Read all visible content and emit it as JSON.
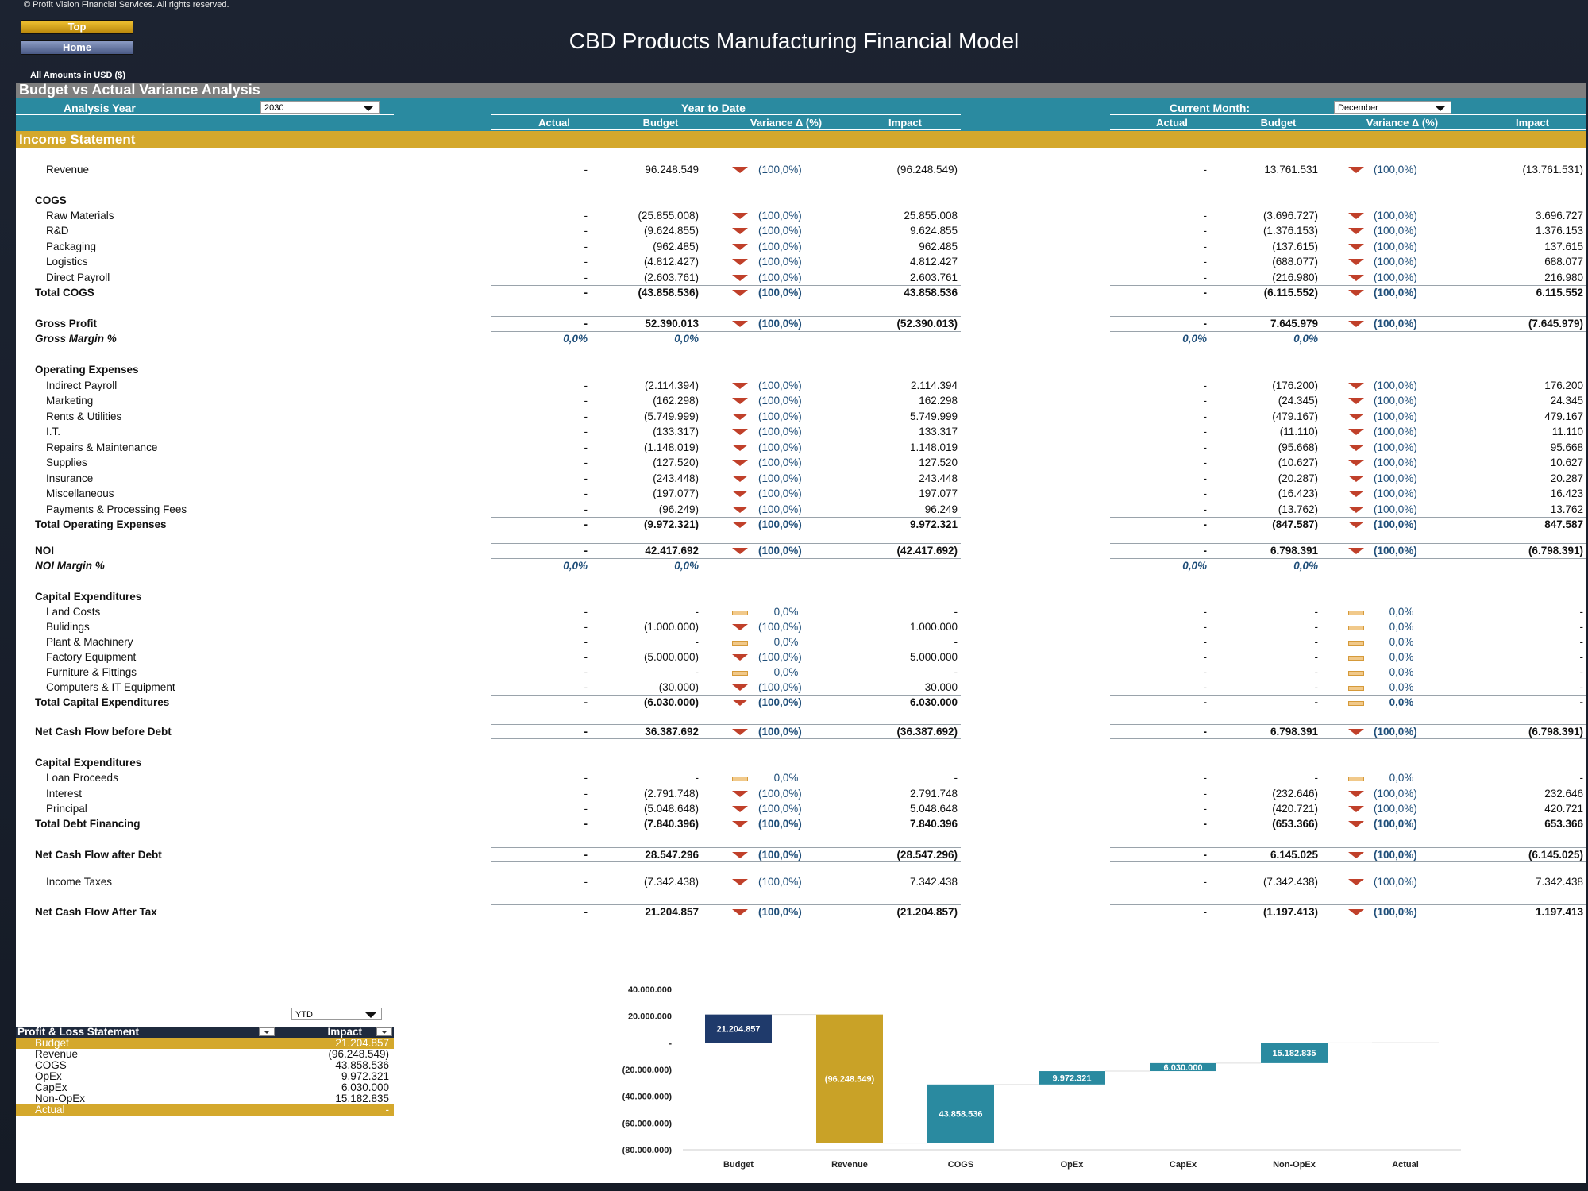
{
  "copyright": "© Profit Vision Financial Services. All rights reserved.",
  "nav": {
    "top": "Top",
    "home": "Home"
  },
  "title": "CBD Products Manufacturing Financial Model",
  "amounts_note": "All Amounts in  USD ($)",
  "section_title": "Budget vs Actual Variance Analysis",
  "controls": {
    "analysis_year_label": "Analysis Year",
    "analysis_year_value": "2030",
    "ytd_label": "Year to Date",
    "current_month_label": "Current Month:",
    "current_month_value": "December"
  },
  "columns": {
    "actual": "Actual",
    "budget": "Budget",
    "variance": "Variance Δ  (%)",
    "impact": "Impact"
  },
  "income_statement_title": "Income Statement",
  "rows": [
    {
      "label": "Revenue",
      "style": "indent",
      "y": 0,
      "ya": "-",
      "yb": "96.248.549",
      "yv": "(100,0%)",
      "yi": "(96.248.549)",
      "ma": "-",
      "mb": "13.761.531",
      "mv": "(100,0%)",
      "mi": "(13.761.531)",
      "icon": "down"
    },
    {
      "label": "COGS",
      "style": "header",
      "y": 39
    },
    {
      "label": "Raw Materials",
      "style": "indent",
      "y": 58,
      "ya": "-",
      "yb": "(25.855.008)",
      "yv": "(100,0%)",
      "yi": "25.855.008",
      "ma": "-",
      "mb": "(3.696.727)",
      "mv": "(100,0%)",
      "mi": "3.696.727",
      "icon": "down"
    },
    {
      "label": "R&D",
      "style": "indent",
      "y": 77,
      "ya": "-",
      "yb": "(9.624.855)",
      "yv": "(100,0%)",
      "yi": "9.624.855",
      "ma": "-",
      "mb": "(1.376.153)",
      "mv": "(100,0%)",
      "mi": "1.376.153",
      "icon": "down"
    },
    {
      "label": "Packaging",
      "style": "indent",
      "y": 97,
      "ya": "-",
      "yb": "(962.485)",
      "yv": "(100,0%)",
      "yi": "962.485",
      "ma": "-",
      "mb": "(137.615)",
      "mv": "(100,0%)",
      "mi": "137.615",
      "icon": "down"
    },
    {
      "label": "Logistics",
      "style": "indent",
      "y": 116,
      "ya": "-",
      "yb": "(4.812.427)",
      "yv": "(100,0%)",
      "yi": "4.812.427",
      "ma": "-",
      "mb": "(688.077)",
      "mv": "(100,0%)",
      "mi": "688.077",
      "icon": "down"
    },
    {
      "label": "Direct Payroll",
      "style": "indent",
      "y": 136,
      "ya": "-",
      "yb": "(2.603.761)",
      "yv": "(100,0%)",
      "yi": "2.603.761",
      "ma": "-",
      "mb": "(216.980)",
      "mv": "(100,0%)",
      "mi": "216.980",
      "icon": "down"
    },
    {
      "label": "Total COGS",
      "style": "total",
      "y": 155,
      "ya": "-",
      "yb": "(43.858.536)",
      "yv": "(100,0%)",
      "yi": "43.858.536",
      "ma": "-",
      "mb": "(6.115.552)",
      "mv": "(100,0%)",
      "mi": "6.115.552",
      "icon": "down",
      "line_above": true
    },
    {
      "label": "Gross Profit",
      "style": "total",
      "y": 194,
      "ya": "-",
      "yb": "52.390.013",
      "yv": "(100,0%)",
      "yi": "(52.390.013)",
      "ma": "-",
      "mb": "7.645.979",
      "mv": "(100,0%)",
      "mi": "(7.645.979)",
      "icon": "down",
      "line_above": true
    },
    {
      "label": "Gross Margin %",
      "style": "pct",
      "y": 213,
      "ya": "0,0%",
      "yb": "0,0%",
      "ma": "0,0%",
      "mb": "0,0%",
      "line_above": true
    },
    {
      "label": "Operating Expenses",
      "style": "header",
      "y": 252
    },
    {
      "label": "Indirect Payroll",
      "style": "indent",
      "y": 272,
      "ya": "-",
      "yb": "(2.114.394)",
      "yv": "(100,0%)",
      "yi": "2.114.394",
      "ma": "-",
      "mb": "(176.200)",
      "mv": "(100,0%)",
      "mi": "176.200",
      "icon": "down"
    },
    {
      "label": "Marketing",
      "style": "indent",
      "y": 291,
      "ya": "-",
      "yb": "(162.298)",
      "yv": "(100,0%)",
      "yi": "162.298",
      "ma": "-",
      "mb": "(24.345)",
      "mv": "(100,0%)",
      "mi": "24.345",
      "icon": "down"
    },
    {
      "label": "Rents & Utilities",
      "style": "indent",
      "y": 311,
      "ya": "-",
      "yb": "(5.749.999)",
      "yv": "(100,0%)",
      "yi": "5.749.999",
      "ma": "-",
      "mb": "(479.167)",
      "mv": "(100,0%)",
      "mi": "479.167",
      "icon": "down"
    },
    {
      "label": "I.T.",
      "style": "indent",
      "y": 330,
      "ya": "-",
      "yb": "(133.317)",
      "yv": "(100,0%)",
      "yi": "133.317",
      "ma": "-",
      "mb": "(11.110)",
      "mv": "(100,0%)",
      "mi": "11.110",
      "icon": "down"
    },
    {
      "label": "Repairs & Maintenance",
      "style": "indent",
      "y": 350,
      "ya": "-",
      "yb": "(1.148.019)",
      "yv": "(100,0%)",
      "yi": "1.148.019",
      "ma": "-",
      "mb": "(95.668)",
      "mv": "(100,0%)",
      "mi": "95.668",
      "icon": "down"
    },
    {
      "label": "Supplies",
      "style": "indent",
      "y": 369,
      "ya": "-",
      "yb": "(127.520)",
      "yv": "(100,0%)",
      "yi": "127.520",
      "ma": "-",
      "mb": "(10.627)",
      "mv": "(100,0%)",
      "mi": "10.627",
      "icon": "down"
    },
    {
      "label": "Insurance",
      "style": "indent",
      "y": 389,
      "ya": "-",
      "yb": "(243.448)",
      "yv": "(100,0%)",
      "yi": "243.448",
      "ma": "-",
      "mb": "(20.287)",
      "mv": "(100,0%)",
      "mi": "20.287",
      "icon": "down"
    },
    {
      "label": "Miscellaneous",
      "style": "indent",
      "y": 408,
      "ya": "-",
      "yb": "(197.077)",
      "yv": "(100,0%)",
      "yi": "197.077",
      "ma": "-",
      "mb": "(16.423)",
      "mv": "(100,0%)",
      "mi": "16.423",
      "icon": "down"
    },
    {
      "label": "Payments & Processing Fees",
      "style": "indent",
      "y": 428,
      "ya": "-",
      "yb": "(96.249)",
      "yv": "(100,0%)",
      "yi": "96.249",
      "ma": "-",
      "mb": "(13.762)",
      "mv": "(100,0%)",
      "mi": "13.762",
      "icon": "down"
    },
    {
      "label": "Total Operating Expenses",
      "style": "total",
      "y": 447,
      "ya": "-",
      "yb": "(9.972.321)",
      "yv": "(100,0%)",
      "yi": "9.972.321",
      "ma": "-",
      "mb": "(847.587)",
      "mv": "(100,0%)",
      "mi": "847.587",
      "icon": "down",
      "line_above": true
    },
    {
      "label": "NOI",
      "style": "total",
      "y": 480,
      "ya": "-",
      "yb": "42.417.692",
      "yv": "(100,0%)",
      "yi": "(42.417.692)",
      "ma": "-",
      "mb": "6.798.391",
      "mv": "(100,0%)",
      "mi": "(6.798.391)",
      "icon": "down",
      "line_above": true
    },
    {
      "label": "NOI Margin %",
      "style": "pct",
      "y": 499,
      "ya": "0,0%",
      "yb": "0,0%",
      "ma": "0,0%",
      "mb": "0,0%",
      "line_above": true
    },
    {
      "label": "Capital Expenditures",
      "style": "header",
      "y": 538
    },
    {
      "label": "Land Costs",
      "style": "indent",
      "y": 557,
      "ya": "-",
      "yb": "-",
      "yv": "0,0%",
      "yi": "-",
      "ma": "-",
      "mb": "-",
      "mv": "0,0%",
      "mi": "-",
      "icon": "flat"
    },
    {
      "label": "Bulidings",
      "style": "indent",
      "y": 576,
      "ya": "-",
      "yb": "(1.000.000)",
      "yv": "(100,0%)",
      "yi": "1.000.000",
      "ma": "-",
      "mb": "-",
      "mv": "0,0%",
      "mi": "-",
      "icon": "down",
      "micon": "flat"
    },
    {
      "label": "Plant & Machinery",
      "style": "indent",
      "y": 595,
      "ya": "-",
      "yb": "-",
      "yv": "0,0%",
      "yi": "-",
      "ma": "-",
      "mb": "-",
      "mv": "0,0%",
      "mi": "-",
      "icon": "flat"
    },
    {
      "label": "Factory Equipment",
      "style": "indent",
      "y": 614,
      "ya": "-",
      "yb": "(5.000.000)",
      "yv": "(100,0%)",
      "yi": "5.000.000",
      "ma": "-",
      "mb": "-",
      "mv": "0,0%",
      "mi": "-",
      "icon": "down",
      "micon": "flat"
    },
    {
      "label": "Furniture & Fittings",
      "style": "indent",
      "y": 633,
      "ya": "-",
      "yb": "-",
      "yv": "0,0%",
      "yi": "-",
      "ma": "-",
      "mb": "-",
      "mv": "0,0%",
      "mi": "-",
      "icon": "flat"
    },
    {
      "label": "Computers & IT Equipment",
      "style": "indent",
      "y": 652,
      "ya": "-",
      "yb": "(30.000)",
      "yv": "(100,0%)",
      "yi": "30.000",
      "ma": "-",
      "mb": "-",
      "mv": "0,0%",
      "mi": "-",
      "icon": "down",
      "micon": "flat"
    },
    {
      "label": "Total Capital Expenditures",
      "style": "total",
      "y": 671,
      "ya": "-",
      "yb": "(6.030.000)",
      "yv": "(100,0%)",
      "yi": "6.030.000",
      "ma": "-",
      "mb": "-",
      "mv": "0,0%",
      "mi": "-",
      "icon": "down",
      "micon": "flat",
      "line_above": true
    },
    {
      "label": "Net Cash Flow before Debt",
      "style": "total",
      "y": 708,
      "ya": "-",
      "yb": "36.387.692",
      "yv": "(100,0%)",
      "yi": "(36.387.692)",
      "ma": "-",
      "mb": "6.798.391",
      "mv": "(100,0%)",
      "mi": "(6.798.391)",
      "icon": "down",
      "line_above": true,
      "line_below": true
    },
    {
      "label": "Capital Expenditures",
      "style": "header",
      "y": 747
    },
    {
      "label": "Loan Proceeds",
      "style": "indent",
      "y": 766,
      "ya": "-",
      "yb": "-",
      "yv": "0,0%",
      "yi": "-",
      "ma": "-",
      "mb": "-",
      "mv": "0,0%",
      "mi": "-",
      "icon": "flat"
    },
    {
      "label": "Interest",
      "style": "indent",
      "y": 786,
      "ya": "-",
      "yb": "(2.791.748)",
      "yv": "(100,0%)",
      "yi": "2.791.748",
      "ma": "-",
      "mb": "(232.646)",
      "mv": "(100,0%)",
      "mi": "232.646",
      "icon": "down"
    },
    {
      "label": "Principal",
      "style": "indent",
      "y": 805,
      "ya": "-",
      "yb": "(5.048.648)",
      "yv": "(100,0%)",
      "yi": "5.048.648",
      "ma": "-",
      "mb": "(420.721)",
      "mv": "(100,0%)",
      "mi": "420.721",
      "icon": "down"
    },
    {
      "label": "Total Debt Financing",
      "style": "total",
      "y": 824,
      "ya": "-",
      "yb": "(7.840.396)",
      "yv": "(100,0%)",
      "yi": "7.840.396",
      "ma": "-",
      "mb": "(653.366)",
      "mv": "(100,0%)",
      "mi": "653.366",
      "icon": "down"
    },
    {
      "label": "Net Cash Flow after Debt",
      "style": "total",
      "y": 863,
      "ya": "-",
      "yb": "28.547.296",
      "yv": "(100,0%)",
      "yi": "(28.547.296)",
      "ma": "-",
      "mb": "6.145.025",
      "mv": "(100,0%)",
      "mi": "(6.145.025)",
      "icon": "down",
      "line_above": true,
      "line_below": true
    },
    {
      "label": "Income Taxes",
      "style": "indent",
      "y": 897,
      "ya": "-",
      "yb": "(7.342.438)",
      "yv": "(100,0%)",
      "yi": "7.342.438",
      "ma": "-",
      "mb": "(7.342.438)",
      "mv": "(100,0%)",
      "mi": "7.342.438",
      "icon": "down"
    },
    {
      "label": "Net Cash Flow After Tax",
      "style": "total",
      "y": 935,
      "ya": "-",
      "yb": "21.204.857",
      "yv": "(100,0%)",
      "yi": "(21.204.857)",
      "ma": "-",
      "mb": "(1.197.413)",
      "mv": "(100,0%)",
      "mi": "1.197.413",
      "icon": "down",
      "line_above": true,
      "line_below": true
    }
  ],
  "pl_table": {
    "selector_value": "YTD",
    "header": {
      "label": "Profit & Loss Statement",
      "impact": "Impact"
    },
    "rows": [
      {
        "label": "Budget",
        "value": "21.204.857",
        "highlight": true
      },
      {
        "label": "Revenue",
        "value": "(96.248.549)"
      },
      {
        "label": "COGS",
        "value": "43.858.536"
      },
      {
        "label": "OpEx",
        "value": "9.972.321"
      },
      {
        "label": "CapEx",
        "value": "6.030.000"
      },
      {
        "label": "Non-OpEx",
        "value": "15.182.835"
      },
      {
        "label": "Actual",
        "value": "-",
        "highlight": true
      }
    ]
  },
  "chart_data": {
    "type": "waterfall",
    "categories": [
      "Budget",
      "Revenue",
      "COGS",
      "OpEx",
      "CapEx",
      "Non-OpEx",
      "Actual"
    ],
    "values": [
      21204857,
      -96248549,
      43858536,
      9972321,
      6030000,
      15182835,
      0
    ],
    "data_labels": [
      "21.204.857",
      "(96.248.549)",
      "43.858.536",
      "9.972.321",
      "6.030.000",
      "15.182.835",
      ""
    ],
    "y_ticks": [
      "40.000.000",
      "20.000.000",
      "-",
      "(20.000.000)",
      "(40.000.000)",
      "(60.000.000)",
      "(80.000.000)"
    ],
    "ylim": [
      -80000000,
      40000000
    ],
    "colors": {
      "budget": "#1f3a6b",
      "revenue": "#c9a227",
      "cogs": "#2a8aa0",
      "other": "#2f97ac"
    }
  }
}
